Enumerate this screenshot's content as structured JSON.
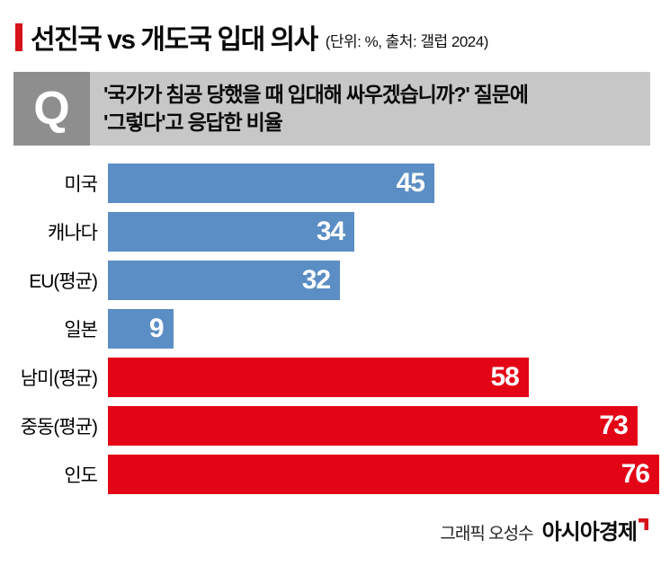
{
  "header": {
    "title": "선진국 vs 개도국 입대 의사",
    "subtitle": "(단위: %, 출처: 갤럽 2024)"
  },
  "question": {
    "q_label": "Q",
    "line1": "'국가가 침공 당했을 때 입대해 싸우겠습니까?' 질문에",
    "line2": "'그렇다'고 응답한 비율"
  },
  "chart_data": {
    "type": "bar",
    "orientation": "horizontal",
    "unit": "%",
    "source": "갤럽 2024",
    "title": "선진국 vs 개도국 입대 의사",
    "categories": [
      "미국",
      "캐나다",
      "EU(평균)",
      "일본",
      "남미(평균)",
      "중동(평균)",
      "인도"
    ],
    "values": [
      45,
      34,
      32,
      9,
      58,
      73,
      76
    ],
    "groups": [
      "선진국",
      "선진국",
      "선진국",
      "선진국",
      "개도국",
      "개도국",
      "개도국"
    ],
    "bar_colors": [
      "#5b8ec4",
      "#5b8ec4",
      "#5b8ec4",
      "#5b8ec4",
      "#e30515",
      "#e30515",
      "#e30515"
    ],
    "value_label_color": "#ffffff",
    "xlim": [
      0,
      76
    ],
    "grid": false,
    "legend": "none"
  },
  "footer": {
    "credit": "그래픽 오성수",
    "brand": "아시아경제"
  },
  "colors": {
    "accent_red": "#d6121b",
    "bar_blue": "#5b8ec4",
    "bar_red": "#e30515",
    "question_bg": "#c7c7c7",
    "question_badge_bg": "#8e8e8e",
    "brand_mark_red": "#d6121b"
  }
}
